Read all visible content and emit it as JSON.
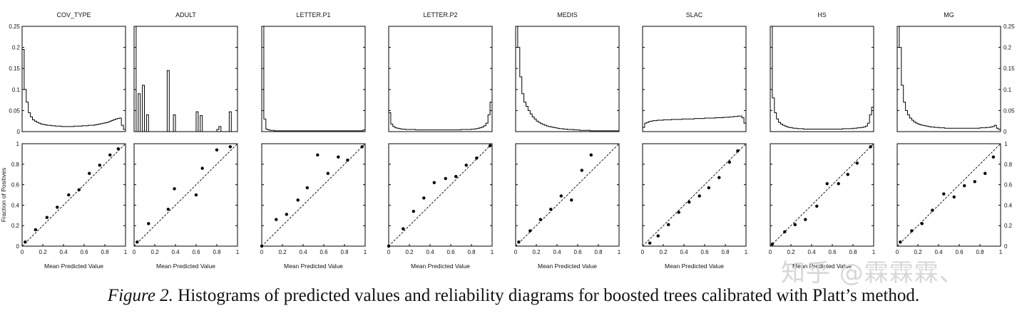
{
  "caption": {
    "label": "Figure 2.",
    "text": " Histograms of predicted values and reliability diagrams for boosted trees calibrated with Platt’s method."
  },
  "watermark": "知乎 @霖霖霖、",
  "histogram_y_ticks": [
    "0",
    "0.05",
    "0.1",
    "0.15",
    "0.2",
    "0.25"
  ],
  "reliability_axis_ticks": [
    "0",
    "0.2",
    "0.4",
    "0.6",
    "0.8",
    "1"
  ],
  "reliability_ylabel": "Fraction of Positives",
  "reliability_xlabel": "Mean Predicted Value",
  "chart_data": [
    {
      "type": "histogram",
      "title": "COV_TYPE",
      "ylim": [
        0,
        0.25
      ],
      "xlim": [
        0,
        1
      ],
      "bins": 50,
      "values": [
        0.195,
        0.1,
        0.07,
        0.045,
        0.035,
        0.028,
        0.025,
        0.022,
        0.02,
        0.018,
        0.017,
        0.016,
        0.015,
        0.015,
        0.014,
        0.014,
        0.013,
        0.013,
        0.013,
        0.012,
        0.012,
        0.012,
        0.012,
        0.012,
        0.012,
        0.013,
        0.013,
        0.013,
        0.013,
        0.014,
        0.014,
        0.014,
        0.015,
        0.015,
        0.015,
        0.016,
        0.017,
        0.018,
        0.019,
        0.02,
        0.021,
        0.022,
        0.024,
        0.026,
        0.028,
        0.03,
        0.031,
        0.032,
        0.015,
        0.005
      ]
    },
    {
      "type": "histogram",
      "title": "ADULT",
      "ylim": [
        0,
        0.25
      ],
      "xlim": [
        0,
        1
      ],
      "bins": 50,
      "values": [
        0.25,
        0.0,
        0.09,
        0.0,
        0.11,
        0.0,
        0.04,
        0.0,
        0.0,
        0.0,
        0.0,
        0.0,
        0.0,
        0.0,
        0.0,
        0.0,
        0.145,
        0.0,
        0.0,
        0.04,
        0.0,
        0.0,
        0.0,
        0.0,
        0.0,
        0.0,
        0.0,
        0.0,
        0.0,
        0.0,
        0.047,
        0.0,
        0.038,
        0.0,
        0.0,
        0.0,
        0.0,
        0.0,
        0.0,
        0.0,
        0.005,
        0.012,
        0.0,
        0.0,
        0.0,
        0.0,
        0.047,
        0.0,
        0.0,
        0.0
      ]
    },
    {
      "type": "histogram",
      "title": "LETTER.P1",
      "ylim": [
        0,
        0.25
      ],
      "xlim": [
        0,
        1
      ],
      "bins": 50,
      "values": [
        0.25,
        0.03,
        0.006,
        0.004,
        0.003,
        0.003,
        0.002,
        0.002,
        0.002,
        0.002,
        0.002,
        0.002,
        0.002,
        0.002,
        0.002,
        0.002,
        0.002,
        0.002,
        0.002,
        0.002,
        0.002,
        0.002,
        0.002,
        0.002,
        0.002,
        0.002,
        0.002,
        0.002,
        0.002,
        0.002,
        0.002,
        0.002,
        0.002,
        0.002,
        0.002,
        0.002,
        0.002,
        0.002,
        0.002,
        0.002,
        0.002,
        0.002,
        0.002,
        0.002,
        0.002,
        0.002,
        0.002,
        0.002,
        0.002,
        0.004
      ]
    },
    {
      "type": "histogram",
      "title": "LETTER.P2",
      "ylim": [
        0,
        0.25
      ],
      "xlim": [
        0,
        1
      ],
      "bins": 50,
      "values": [
        0.045,
        0.018,
        0.012,
        0.009,
        0.008,
        0.007,
        0.006,
        0.006,
        0.005,
        0.005,
        0.005,
        0.005,
        0.005,
        0.004,
        0.004,
        0.004,
        0.004,
        0.004,
        0.004,
        0.004,
        0.004,
        0.004,
        0.004,
        0.004,
        0.004,
        0.004,
        0.004,
        0.004,
        0.004,
        0.004,
        0.004,
        0.004,
        0.004,
        0.004,
        0.004,
        0.005,
        0.005,
        0.005,
        0.005,
        0.005,
        0.006,
        0.006,
        0.007,
        0.008,
        0.009,
        0.011,
        0.014,
        0.02,
        0.04,
        0.07
      ]
    },
    {
      "type": "histogram",
      "title": "MEDIS",
      "ylim": [
        0,
        0.25
      ],
      "xlim": [
        0,
        1
      ],
      "bins": 50,
      "values": [
        0.25,
        0.2,
        0.13,
        0.09,
        0.07,
        0.06,
        0.05,
        0.042,
        0.035,
        0.03,
        0.025,
        0.022,
        0.019,
        0.017,
        0.015,
        0.013,
        0.012,
        0.011,
        0.01,
        0.009,
        0.008,
        0.007,
        0.007,
        0.006,
        0.006,
        0.005,
        0.005,
        0.005,
        0.004,
        0.004,
        0.004,
        0.003,
        0.003,
        0.003,
        0.003,
        0.003,
        0.002,
        0.002,
        0.002,
        0.002,
        0.002,
        0.002,
        0.002,
        0.002,
        0.002,
        0.002,
        0.002,
        0.002,
        0.002,
        0.002
      ]
    },
    {
      "type": "histogram",
      "title": "SLAC",
      "ylim": [
        0,
        0.25
      ],
      "xlim": [
        0,
        1
      ],
      "bins": 50,
      "values": [
        0.01,
        0.02,
        0.022,
        0.024,
        0.025,
        0.026,
        0.026,
        0.027,
        0.027,
        0.027,
        0.028,
        0.028,
        0.028,
        0.028,
        0.029,
        0.029,
        0.029,
        0.029,
        0.029,
        0.03,
        0.03,
        0.03,
        0.03,
        0.03,
        0.03,
        0.031,
        0.031,
        0.031,
        0.031,
        0.031,
        0.032,
        0.032,
        0.032,
        0.032,
        0.032,
        0.033,
        0.033,
        0.033,
        0.033,
        0.034,
        0.034,
        0.034,
        0.035,
        0.035,
        0.036,
        0.036,
        0.037,
        0.037,
        0.033,
        0.02
      ]
    },
    {
      "type": "histogram",
      "title": "HS",
      "ylim": [
        0,
        0.25
      ],
      "xlim": [
        0,
        1
      ],
      "bins": 50,
      "values": [
        0.25,
        0.08,
        0.045,
        0.03,
        0.022,
        0.018,
        0.015,
        0.013,
        0.011,
        0.01,
        0.009,
        0.008,
        0.008,
        0.007,
        0.007,
        0.007,
        0.006,
        0.006,
        0.006,
        0.006,
        0.006,
        0.006,
        0.006,
        0.006,
        0.006,
        0.006,
        0.006,
        0.006,
        0.006,
        0.006,
        0.006,
        0.006,
        0.006,
        0.006,
        0.006,
        0.007,
        0.007,
        0.007,
        0.007,
        0.007,
        0.008,
        0.008,
        0.009,
        0.009,
        0.01,
        0.011,
        0.013,
        0.02,
        0.04,
        0.058
      ]
    },
    {
      "type": "histogram",
      "title": "MG",
      "ylim": [
        0,
        0.25
      ],
      "xlim": [
        0,
        1
      ],
      "bins": 50,
      "values": [
        0.25,
        0.2,
        0.11,
        0.07,
        0.05,
        0.04,
        0.032,
        0.027,
        0.023,
        0.02,
        0.018,
        0.016,
        0.015,
        0.014,
        0.013,
        0.012,
        0.011,
        0.011,
        0.01,
        0.01,
        0.009,
        0.009,
        0.009,
        0.008,
        0.008,
        0.008,
        0.008,
        0.008,
        0.008,
        0.008,
        0.008,
        0.008,
        0.008,
        0.008,
        0.008,
        0.008,
        0.008,
        0.008,
        0.008,
        0.008,
        0.009,
        0.009,
        0.009,
        0.01,
        0.01,
        0.011,
        0.012,
        0.015,
        0.008,
        0.005
      ]
    },
    {
      "type": "scatter",
      "title": "",
      "xlabel": "Mean Predicted Value",
      "ylabel": "Fraction of Positives",
      "xlim": [
        0,
        1
      ],
      "ylim": [
        0,
        1
      ],
      "diagonal": true,
      "x": [
        0.03,
        0.13,
        0.24,
        0.34,
        0.45,
        0.55,
        0.65,
        0.75,
        0.85,
        0.93
      ],
      "y": [
        0.04,
        0.16,
        0.28,
        0.38,
        0.5,
        0.55,
        0.71,
        0.79,
        0.89,
        0.95
      ]
    },
    {
      "type": "scatter",
      "title": "",
      "xlabel": "Mean Predicted Value",
      "ylabel": "",
      "xlim": [
        0,
        1
      ],
      "ylim": [
        0,
        1
      ],
      "diagonal": true,
      "x": [
        0.03,
        0.14,
        0.33,
        0.39,
        0.6,
        0.66,
        0.8,
        0.93
      ],
      "y": [
        0.04,
        0.22,
        0.36,
        0.56,
        0.5,
        0.76,
        0.94,
        0.97
      ]
    },
    {
      "type": "scatter",
      "title": "",
      "xlabel": "Mean Predicted Value",
      "ylabel": "",
      "xlim": [
        0,
        1
      ],
      "ylim": [
        0,
        1
      ],
      "diagonal": true,
      "x": [
        0.0,
        0.14,
        0.24,
        0.35,
        0.44,
        0.54,
        0.64,
        0.74,
        0.83,
        0.97
      ],
      "y": [
        0.0,
        0.26,
        0.31,
        0.45,
        0.57,
        0.89,
        0.71,
        0.87,
        0.84,
        0.97
      ]
    },
    {
      "type": "scatter",
      "title": "",
      "xlabel": "Mean Predicted Value",
      "ylabel": "",
      "xlim": [
        0,
        1
      ],
      "ylim": [
        0,
        1
      ],
      "diagonal": true,
      "x": [
        0.0,
        0.14,
        0.24,
        0.34,
        0.44,
        0.55,
        0.65,
        0.75,
        0.85,
        0.98
      ],
      "y": [
        0.0,
        0.17,
        0.34,
        0.47,
        0.62,
        0.66,
        0.68,
        0.79,
        0.86,
        0.98
      ]
    },
    {
      "type": "scatter",
      "title": "",
      "xlabel": "Mean Predicted Value",
      "ylabel": "",
      "xlim": [
        0,
        1
      ],
      "ylim": [
        0,
        1
      ],
      "diagonal": true,
      "x": [
        0.03,
        0.14,
        0.24,
        0.34,
        0.44,
        0.54,
        0.64,
        0.73
      ],
      "y": [
        0.04,
        0.15,
        0.26,
        0.36,
        0.49,
        0.45,
        0.74,
        0.89
      ]
    },
    {
      "type": "scatter",
      "title": "",
      "xlabel": "Mean Predicted Value",
      "ylabel": "",
      "xlim": [
        0,
        1
      ],
      "ylim": [
        0,
        1
      ],
      "diagonal": true,
      "x": [
        0.07,
        0.15,
        0.25,
        0.35,
        0.45,
        0.55,
        0.64,
        0.74,
        0.84,
        0.92
      ],
      "y": [
        0.03,
        0.1,
        0.21,
        0.33,
        0.43,
        0.49,
        0.57,
        0.67,
        0.82,
        0.93
      ]
    },
    {
      "type": "scatter",
      "title": "",
      "xlabel": "Mean Predicted Value",
      "ylabel": "",
      "xlim": [
        0,
        1
      ],
      "ylim": [
        0,
        1
      ],
      "diagonal": true,
      "x": [
        0.02,
        0.14,
        0.24,
        0.34,
        0.45,
        0.55,
        0.66,
        0.75,
        0.84,
        0.97
      ],
      "y": [
        0.02,
        0.14,
        0.21,
        0.26,
        0.39,
        0.61,
        0.61,
        0.7,
        0.81,
        0.97
      ]
    },
    {
      "type": "scatter",
      "title": "",
      "xlabel": "",
      "ylabel": "",
      "xlim": [
        0,
        1
      ],
      "ylim": [
        0,
        1
      ],
      "diagonal": true,
      "x": [
        0.03,
        0.14,
        0.24,
        0.34,
        0.45,
        0.55,
        0.65,
        0.75,
        0.85,
        0.93
      ],
      "y": [
        0.04,
        0.15,
        0.22,
        0.35,
        0.51,
        0.48,
        0.59,
        0.63,
        0.71,
        0.87
      ]
    }
  ]
}
